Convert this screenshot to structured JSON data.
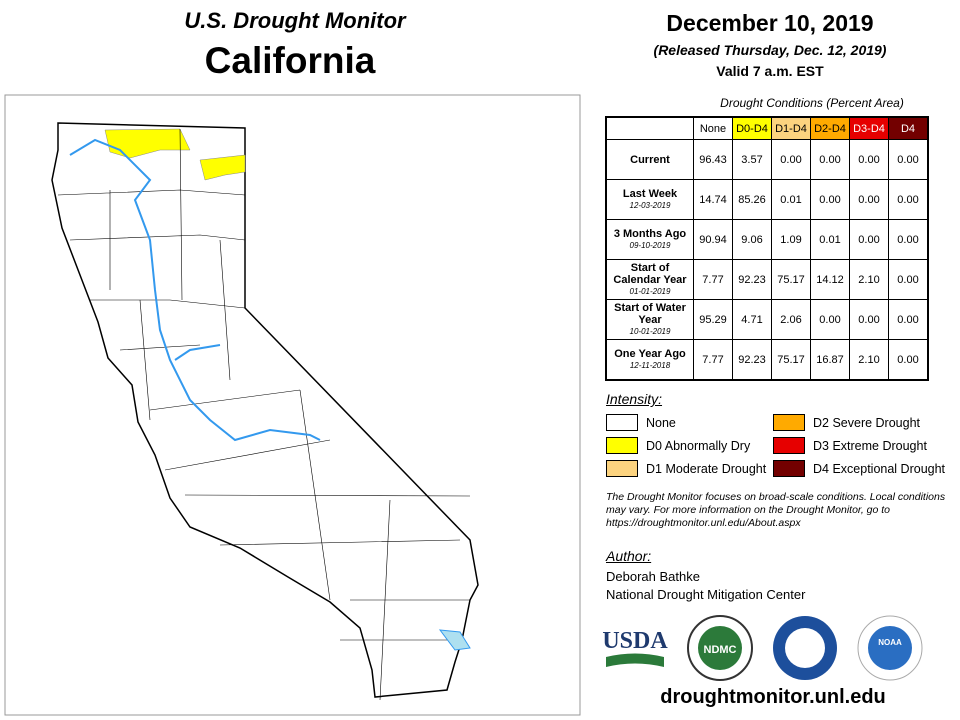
{
  "header": {
    "title": "U.S. Drought Monitor",
    "state": "California"
  },
  "date": {
    "title": "December 10, 2019",
    "released": "(Released Thursday, Dec. 12, 2019)",
    "valid": "Valid 7 a.m. EST"
  },
  "table": {
    "caption": "Drought Conditions (Percent Area)",
    "columns": [
      "None",
      "D0-D4",
      "D1-D4",
      "D2-D4",
      "D3-D4",
      "D4"
    ],
    "rows": [
      {
        "label": "Current",
        "values": [
          "96.43",
          "3.57",
          "0.00",
          "0.00",
          "0.00",
          "0.00"
        ]
      },
      {
        "label": "Last Week",
        "date": "12-03-2019",
        "values": [
          "14.74",
          "85.26",
          "0.01",
          "0.00",
          "0.00",
          "0.00"
        ]
      },
      {
        "label": "3 Months Ago",
        "date": "09-10-2019",
        "values": [
          "90.94",
          "9.06",
          "1.09",
          "0.01",
          "0.00",
          "0.00"
        ]
      },
      {
        "label": "Start of Calendar Year",
        "date": "01-01-2019",
        "values": [
          "7.77",
          "92.23",
          "75.17",
          "14.12",
          "2.10",
          "0.00"
        ]
      },
      {
        "label": "Start of Water Year",
        "date": "10-01-2019",
        "values": [
          "95.29",
          "4.71",
          "2.06",
          "0.00",
          "0.00",
          "0.00"
        ]
      },
      {
        "label": "One Year Ago",
        "date": "12-11-2018",
        "values": [
          "7.77",
          "92.23",
          "75.17",
          "16.87",
          "2.10",
          "0.00"
        ]
      }
    ]
  },
  "intensity": {
    "title": "Intensity:",
    "items": [
      {
        "label": "None",
        "color": "#ffffff"
      },
      {
        "label": "D0 Abnormally Dry",
        "color": "#ffff00"
      },
      {
        "label": "D1 Moderate Drought",
        "color": "#fcd37f"
      },
      {
        "label": "D2 Severe Drought",
        "color": "#ffaa00"
      },
      {
        "label": "D3 Extreme Drought",
        "color": "#e60000"
      },
      {
        "label": "D4 Exceptional Drought",
        "color": "#730000"
      }
    ]
  },
  "note": "The Drought Monitor focuses on broad-scale conditions. Local conditions may vary. For more information on the Drought Monitor, go to https://droughtmonitor.unl.edu/About.aspx",
  "author": {
    "title": "Author:",
    "name": "Deborah Bathke",
    "org": "National Drought Mitigation Center"
  },
  "logos": {
    "usda": "USDA",
    "ndmc": "NDMC",
    "noaa": "NOAA"
  },
  "footer": "droughtmonitor.unl.edu"
}
